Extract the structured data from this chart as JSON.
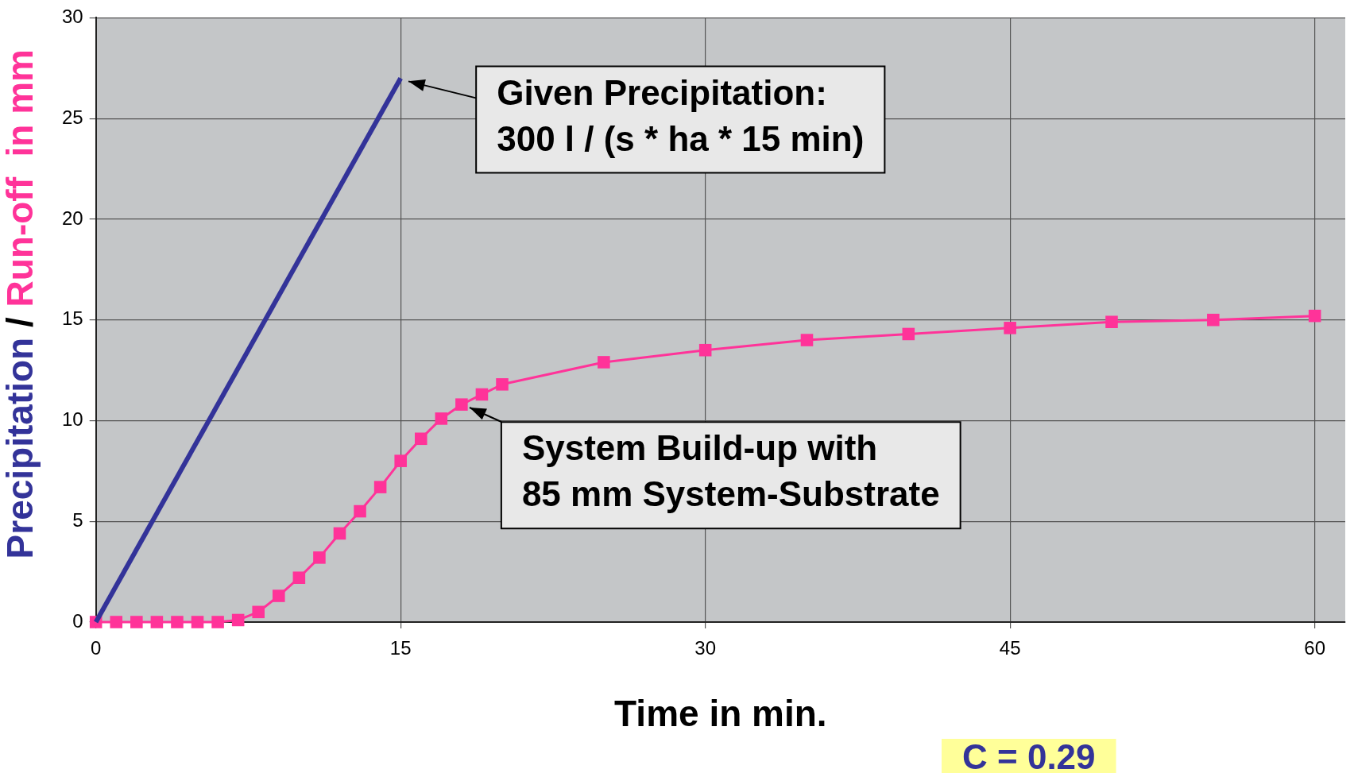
{
  "chart_data": {
    "type": "line",
    "xlabel": "Time in min.",
    "ylabel": "Precipitation / Run-off  in mm",
    "xlim": [
      0,
      61.5
    ],
    "xticks": [
      0,
      15,
      30,
      45,
      60
    ],
    "ylim": [
      0,
      30
    ],
    "yticks": [
      0,
      5,
      10,
      15,
      20,
      25,
      30
    ],
    "grid": true,
    "legend": false,
    "series": [
      {
        "color": "#333399",
        "marker": "none",
        "x": [
          0,
          15
        ],
        "values": [
          0,
          27.0
        ]
      },
      {
        "color": "#ff3399",
        "marker": "square",
        "x": [
          0,
          1,
          2,
          3,
          4,
          5,
          6,
          7,
          8,
          9,
          10,
          11,
          12,
          13,
          14,
          15,
          16,
          17,
          18,
          19,
          20,
          25,
          30,
          35,
          40,
          45,
          50,
          55,
          60
        ],
        "values": [
          0,
          0,
          0,
          0,
          0,
          0,
          0,
          0.1,
          0.5,
          1.3,
          2.2,
          3.2,
          4.4,
          5.5,
          6.7,
          8.0,
          9.1,
          10.1,
          10.8,
          11.3,
          11.8,
          12.9,
          13.5,
          14.0,
          14.3,
          14.6,
          14.9,
          15.0,
          15.2
        ]
      }
    ],
    "annotations": [
      {
        "text": "Given Precipitation:\n300 l / (s * ha * 15 min)",
        "x": 15,
        "y": 27.0
      },
      {
        "text": "System Build-up with\n85 mm System-Substrate",
        "x": 18,
        "y": 10.8
      },
      "C = 0.29"
    ]
  }
}
